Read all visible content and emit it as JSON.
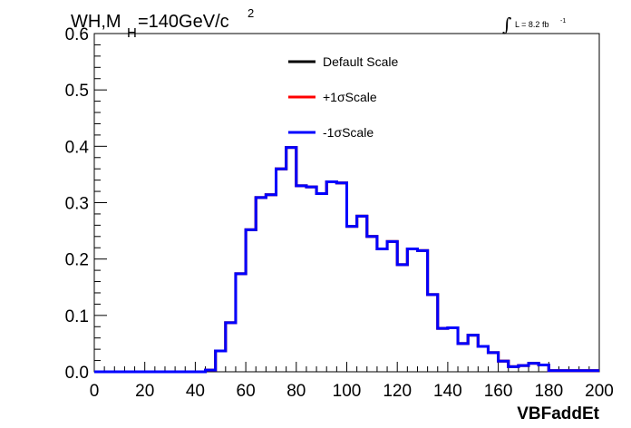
{
  "chart_data": {
    "type": "line",
    "title": {
      "main": "WH,M",
      "subscript": "H",
      "rest": "=140GeV/c",
      "superscript": "2"
    },
    "lumi": {
      "integral_symbol": "∫",
      "text": "L = 8.2 fb",
      "superscript": "-1"
    },
    "xlabel": "VBFaddEt",
    "ylabel": "",
    "xlim": [
      0,
      200
    ],
    "ylim": [
      0,
      0.6
    ],
    "x_ticks": [
      0,
      20,
      40,
      60,
      80,
      100,
      120,
      140,
      160,
      180,
      200
    ],
    "x_tick_labels": [
      "0",
      "20",
      "40",
      "60",
      "80",
      "100",
      "120",
      "140",
      "160",
      "180",
      "200"
    ],
    "y_ticks": [
      0,
      0.1,
      0.2,
      0.3,
      0.4,
      0.5,
      0.6
    ],
    "y_tick_labels": [
      "0.0",
      "0.1",
      "0.2",
      "0.3",
      "0.4",
      "0.5",
      "0.6"
    ],
    "grid": false,
    "legend_position": "top-center",
    "bin_edges": [
      0,
      4,
      8,
      12,
      16,
      20,
      24,
      28,
      32,
      36,
      40,
      44,
      48,
      52,
      56,
      60,
      64,
      68,
      72,
      76,
      80,
      84,
      88,
      92,
      96,
      100,
      104,
      108,
      112,
      116,
      120,
      124,
      128,
      132,
      136,
      140,
      144,
      148,
      152,
      156,
      160,
      164,
      168,
      172,
      176,
      180,
      184,
      188,
      192,
      196,
      200
    ],
    "series": [
      {
        "name": "Default Scale",
        "color": "#000000",
        "values": [
          0,
          0,
          0,
          0,
          0,
          0,
          0,
          0,
          0,
          0,
          0,
          0.003,
          0.037,
          0.087,
          0.174,
          0.252,
          0.309,
          0.314,
          0.36,
          0.398,
          0.33,
          0.328,
          0.316,
          0.337,
          0.335,
          0.258,
          0.276,
          0.24,
          0.218,
          0.231,
          0.19,
          0.218,
          0.215,
          0.137,
          0.077,
          0.078,
          0.05,
          0.065,
          0.045,
          0.034,
          0.019,
          0.009,
          0.011,
          0.015,
          0.012,
          0.002,
          0.002,
          0.002,
          0.002,
          0.002
        ]
      },
      {
        "name": "+1σScale",
        "color": "#ff0000",
        "values": [
          0,
          0,
          0,
          0,
          0,
          0,
          0,
          0,
          0,
          0,
          0,
          0.003,
          0.037,
          0.087,
          0.174,
          0.252,
          0.309,
          0.314,
          0.36,
          0.398,
          0.33,
          0.328,
          0.316,
          0.337,
          0.335,
          0.258,
          0.276,
          0.24,
          0.218,
          0.231,
          0.19,
          0.218,
          0.215,
          0.137,
          0.077,
          0.078,
          0.05,
          0.065,
          0.045,
          0.034,
          0.019,
          0.009,
          0.011,
          0.015,
          0.012,
          0.002,
          0.002,
          0.002,
          0.002,
          0.002
        ]
      },
      {
        "name": "-1σScale",
        "color": "#0000ff",
        "values": [
          0,
          0,
          0,
          0,
          0,
          0,
          0,
          0,
          0,
          0,
          0,
          0.003,
          0.037,
          0.087,
          0.174,
          0.252,
          0.309,
          0.314,
          0.36,
          0.398,
          0.33,
          0.328,
          0.316,
          0.337,
          0.335,
          0.258,
          0.276,
          0.24,
          0.218,
          0.231,
          0.19,
          0.218,
          0.215,
          0.137,
          0.077,
          0.078,
          0.05,
          0.065,
          0.045,
          0.034,
          0.019,
          0.009,
          0.011,
          0.015,
          0.012,
          0.002,
          0.002,
          0.002,
          0.002,
          0.002
        ]
      }
    ]
  }
}
